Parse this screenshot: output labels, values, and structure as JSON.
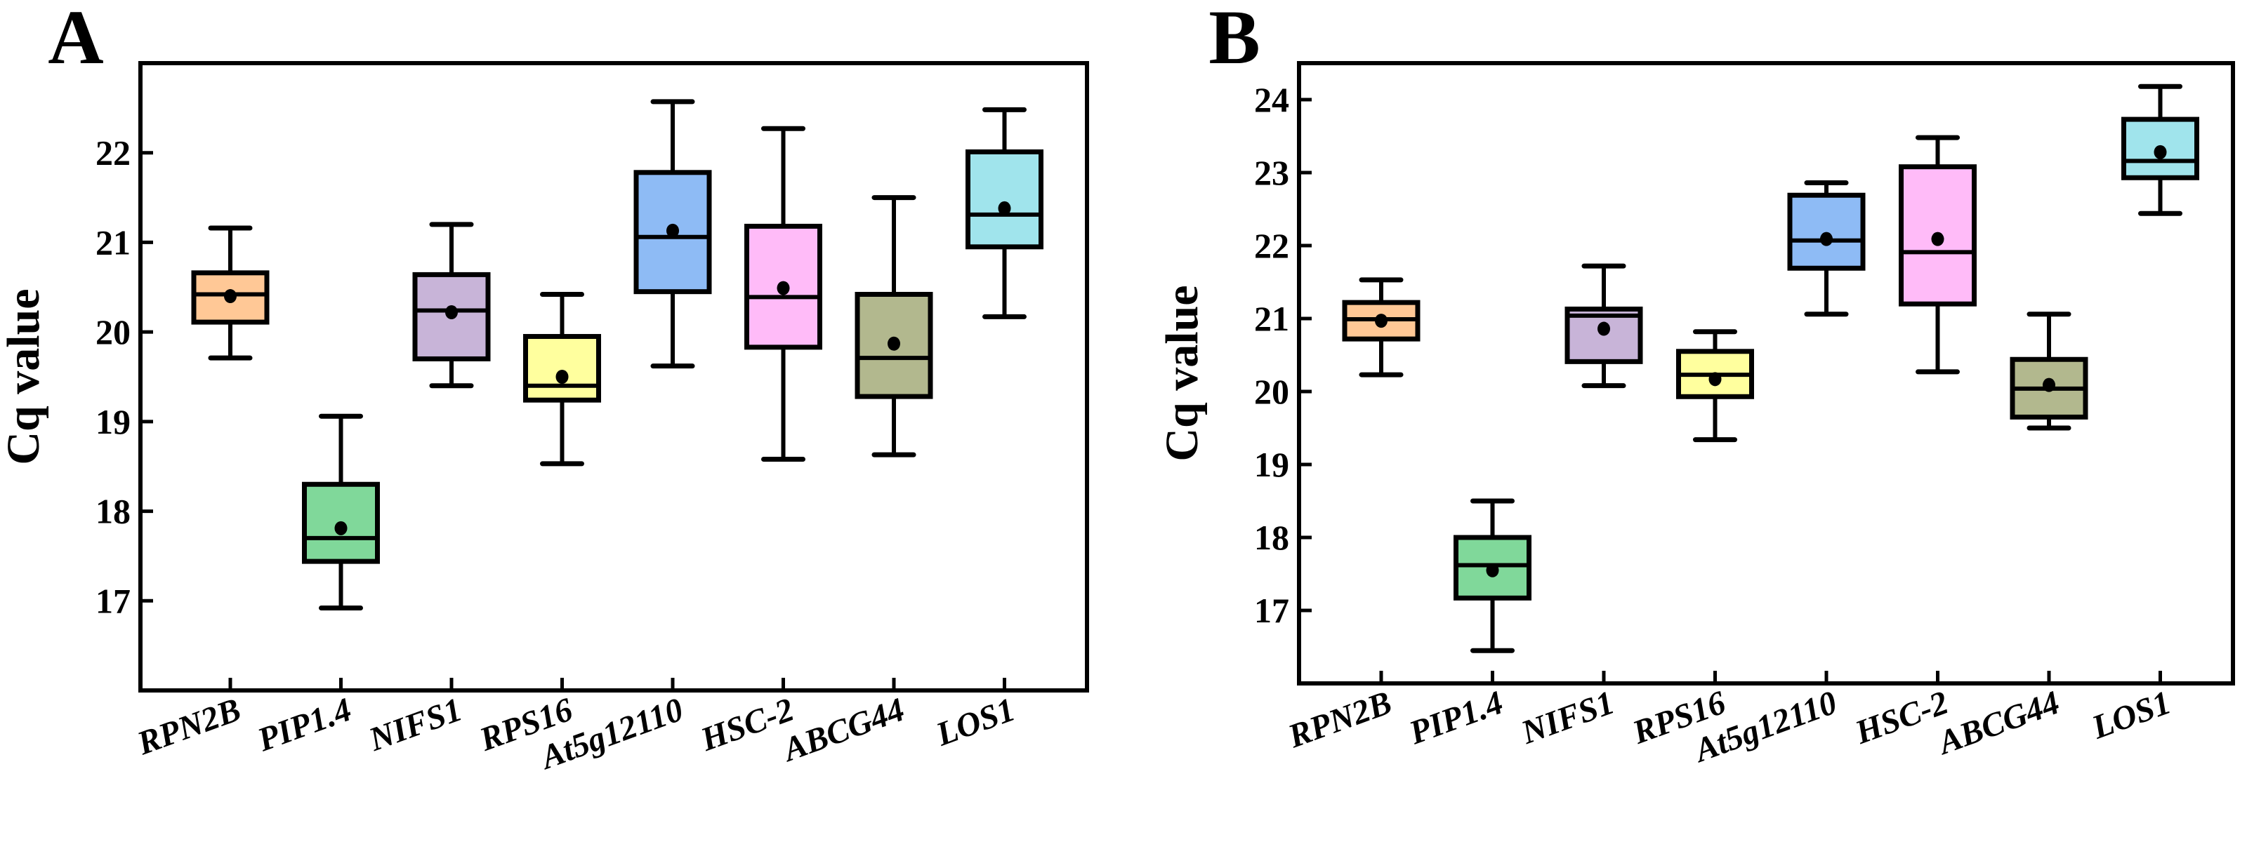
{
  "chart_data": [
    {
      "type": "box",
      "panel_label": "A",
      "ylabel": "Cq value",
      "xlabel": "",
      "ylim": [
        16,
        23
      ],
      "yticks": [
        17,
        18,
        19,
        20,
        21,
        22
      ],
      "grid": false,
      "categories": [
        "RPN2B",
        "PIP1.4",
        "NIFS1",
        "RPS16",
        "At5g12110",
        "HSC-2",
        "ABCG44",
        "LOS1"
      ],
      "colors": [
        "#FFC896",
        "#80D89A",
        "#C8B4D8",
        "#FFFF9E",
        "#8EBBF5",
        "#FFBBF8",
        "#B2B88E",
        "#A0E4EC"
      ],
      "boxes": [
        {
          "min": 19.71,
          "q1": 20.11,
          "median": 20.42,
          "q3": 20.66,
          "max": 21.16,
          "mean": 20.4
        },
        {
          "min": 16.92,
          "q1": 17.44,
          "median": 17.7,
          "q3": 18.3,
          "max": 19.06,
          "mean": 17.81
        },
        {
          "min": 19.4,
          "q1": 19.7,
          "median": 20.24,
          "q3": 20.64,
          "max": 21.2,
          "mean": 20.22
        },
        {
          "min": 18.53,
          "q1": 19.24,
          "median": 19.4,
          "q3": 19.95,
          "max": 20.42,
          "mean": 19.5
        },
        {
          "min": 19.62,
          "q1": 20.45,
          "median": 21.06,
          "q3": 21.78,
          "max": 22.57,
          "mean": 21.13
        },
        {
          "min": 18.58,
          "q1": 19.83,
          "median": 20.39,
          "q3": 21.18,
          "max": 22.27,
          "mean": 20.49
        },
        {
          "min": 18.63,
          "q1": 19.28,
          "median": 19.71,
          "q3": 20.42,
          "max": 21.5,
          "mean": 19.87
        },
        {
          "min": 20.17,
          "q1": 20.95,
          "median": 21.31,
          "q3": 22.01,
          "max": 22.48,
          "mean": 21.38
        }
      ]
    },
    {
      "type": "box",
      "panel_label": "B",
      "ylabel": "Cq value",
      "xlabel": "",
      "ylim": [
        16,
        24.5
      ],
      "yticks": [
        17,
        18,
        19,
        20,
        21,
        22,
        23,
        24
      ],
      "grid": false,
      "categories": [
        "RPN2B",
        "PIP1.4",
        "NIFS1",
        "RPS16",
        "At5g12110",
        "HSC-2",
        "ABCG44",
        "LOS1"
      ],
      "colors": [
        "#FFC896",
        "#80D89A",
        "#C8B4D8",
        "#FFFF9E",
        "#8EBBF5",
        "#FFBBF8",
        "#B2B88E",
        "#A0E4EC"
      ],
      "boxes": [
        {
          "min": 20.23,
          "q1": 20.72,
          "median": 20.99,
          "q3": 21.22,
          "max": 21.53,
          "mean": 20.97
        },
        {
          "min": 16.45,
          "q1": 17.17,
          "median": 17.62,
          "q3": 18.0,
          "max": 18.5,
          "mean": 17.55
        },
        {
          "min": 20.08,
          "q1": 20.41,
          "median": 21.04,
          "q3": 21.13,
          "max": 21.72,
          "mean": 20.86
        },
        {
          "min": 19.34,
          "q1": 19.93,
          "median": 20.23,
          "q3": 20.55,
          "max": 20.82,
          "mean": 20.17
        },
        {
          "min": 21.06,
          "q1": 21.69,
          "median": 22.07,
          "q3": 22.69,
          "max": 22.86,
          "mean": 22.09
        },
        {
          "min": 20.27,
          "q1": 21.2,
          "median": 21.91,
          "q3": 23.08,
          "max": 23.48,
          "mean": 22.09
        },
        {
          "min": 19.5,
          "q1": 19.65,
          "median": 20.04,
          "q3": 20.44,
          "max": 21.06,
          "mean": 20.09
        },
        {
          "min": 22.44,
          "q1": 22.93,
          "median": 23.16,
          "q3": 23.73,
          "max": 24.18,
          "mean": 23.28
        }
      ]
    }
  ]
}
